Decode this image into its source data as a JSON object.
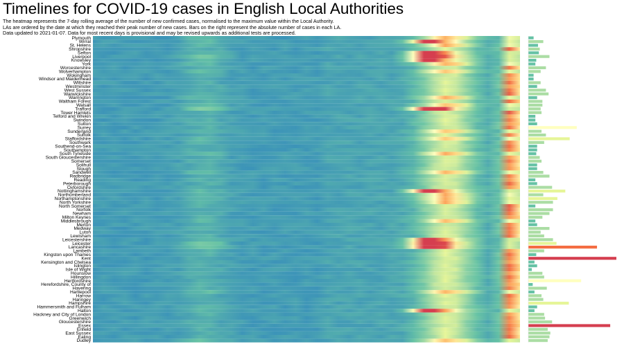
{
  "page": {
    "title": "Timelines for COVID-19 cases in English Local Authorities",
    "description_lines": [
      "The heatmap represents the 7-day rolling average of the number of new confirmed cases, normalised to the maximum value within the Local Authority.",
      "LAs are ordered by the date at which they reached their peak number of new cases. Bars on the right represent the absolute number of cases in each LA.",
      "Data updated to 2021-01-07. Data for most recent days is provisional and may be revised upwards as additional tests are processed."
    ]
  },
  "colors": {
    "low": "#3288bd",
    "mid": "#ffffbf",
    "high": "#d53e4f"
  },
  "chart_data": {
    "type": "heatmap",
    "title": "Timelines for COVID-19 cases in English Local Authorities",
    "value_scale": [
      0,
      1
    ],
    "legend": "none",
    "rows": [
      {
        "name": "Plymouth",
        "pattern": 2,
        "bar": 0.06
      },
      {
        "name": "Wirral",
        "pattern": 3,
        "bar": 0.17
      },
      {
        "name": "St. Helens",
        "pattern": 2,
        "bar": 0.11
      },
      {
        "name": "Shropshire",
        "pattern": 1,
        "bar": 0.13
      },
      {
        "name": "Sefton",
        "pattern": 3,
        "bar": 0.12
      },
      {
        "name": "Liverpool",
        "pattern": 4,
        "bar": 0.24
      },
      {
        "name": "Knowsley",
        "pattern": 3,
        "bar": 0.09
      },
      {
        "name": "York",
        "pattern": 2,
        "bar": 0.08
      },
      {
        "name": "Worcestershire",
        "pattern": 1,
        "bar": 0.2
      },
      {
        "name": "Wolverhampton",
        "pattern": 2,
        "bar": 0.14
      },
      {
        "name": "Wokingham",
        "pattern": 1,
        "bar": 0.06
      },
      {
        "name": "Windsor and Maidenhead",
        "pattern": 1,
        "bar": 0.06
      },
      {
        "name": "Wiltshire",
        "pattern": 1,
        "bar": 0.14
      },
      {
        "name": "Westminster",
        "pattern": 1,
        "bar": 0.1
      },
      {
        "name": "West Sussex",
        "pattern": 1,
        "bar": 0.2
      },
      {
        "name": "Warwickshire",
        "pattern": 1,
        "bar": 0.23
      },
      {
        "name": "Warrington",
        "pattern": 2,
        "bar": 0.1
      },
      {
        "name": "Waltham Forest",
        "pattern": 1,
        "bar": 0.16
      },
      {
        "name": "Walsall",
        "pattern": 2,
        "bar": 0.16
      },
      {
        "name": "Trafford",
        "pattern": 4,
        "bar": 0.14
      },
      {
        "name": "Tower Hamlets",
        "pattern": 1,
        "bar": 0.15
      },
      {
        "name": "Telford and Wrekin",
        "pattern": 1,
        "bar": 0.08
      },
      {
        "name": "Swindon",
        "pattern": 1,
        "bar": 0.08
      },
      {
        "name": "Sutton",
        "pattern": 1,
        "bar": 0.1
      },
      {
        "name": "Surrey",
        "pattern": 1,
        "bar": 0.55
      },
      {
        "name": "Sunderland",
        "pattern": 2,
        "bar": 0.15
      },
      {
        "name": "Suffolk",
        "pattern": 1,
        "bar": 0.2
      },
      {
        "name": "Staffordshire",
        "pattern": 2,
        "bar": 0.47
      },
      {
        "name": "Southwark",
        "pattern": 1,
        "bar": 0.18
      },
      {
        "name": "Southend-on-Sea",
        "pattern": 1,
        "bar": 0.1
      },
      {
        "name": "Southampton",
        "pattern": 1,
        "bar": 0.1
      },
      {
        "name": "South Tyneside",
        "pattern": 2,
        "bar": 0.09
      },
      {
        "name": "South Gloucestershire",
        "pattern": 1,
        "bar": 0.13
      },
      {
        "name": "Somerset",
        "pattern": 1,
        "bar": 0.15
      },
      {
        "name": "Solihull",
        "pattern": 1,
        "bar": 0.1
      },
      {
        "name": "Slough",
        "pattern": 1,
        "bar": 0.1
      },
      {
        "name": "Sandwell",
        "pattern": 2,
        "bar": 0.17
      },
      {
        "name": "Redbridge",
        "pattern": 1,
        "bar": 0.24
      },
      {
        "name": "Reading",
        "pattern": 1,
        "bar": 0.08
      },
      {
        "name": "Peterborough",
        "pattern": 1,
        "bar": 0.1
      },
      {
        "name": "Oxfordshire",
        "pattern": 1,
        "bar": 0.27
      },
      {
        "name": "Nottinghamshire",
        "pattern": 3,
        "bar": 0.42
      },
      {
        "name": "Northumberland",
        "pattern": 2,
        "bar": 0.17
      },
      {
        "name": "Northamptonshire",
        "pattern": 2,
        "bar": 0.33
      },
      {
        "name": "North Yorkshire",
        "pattern": 2,
        "bar": 0.28
      },
      {
        "name": "North Somerset",
        "pattern": 1,
        "bar": 0.08
      },
      {
        "name": "Norfolk",
        "pattern": 1,
        "bar": 0.28
      },
      {
        "name": "Newham",
        "pattern": 1,
        "bar": 0.24
      },
      {
        "name": "Milton Keynes",
        "pattern": 1,
        "bar": 0.16
      },
      {
        "name": "Middlesbrough",
        "pattern": 2,
        "bar": 0.08
      },
      {
        "name": "Merton",
        "pattern": 1,
        "bar": 0.1
      },
      {
        "name": "Medway",
        "pattern": 1,
        "bar": 0.24
      },
      {
        "name": "Luton",
        "pattern": 1,
        "bar": 0.14
      },
      {
        "name": "Lewisham",
        "pattern": 1,
        "bar": 0.18
      },
      {
        "name": "Leicestershire",
        "pattern": 3,
        "bar": 0.28
      },
      {
        "name": "Leicester",
        "pattern": 4,
        "bar": 0.32
      },
      {
        "name": "Lancashire",
        "pattern": 4,
        "bar": 0.78
      },
      {
        "name": "Lambeth",
        "pattern": 1,
        "bar": 0.18
      },
      {
        "name": "Kingston upon Thames",
        "pattern": 1,
        "bar": 0.09
      },
      {
        "name": "Kent",
        "pattern": 1,
        "bar": 1.0
      },
      {
        "name": "Kensington and Chelsea",
        "pattern": 1,
        "bar": 0.07
      },
      {
        "name": "Islington",
        "pattern": 1,
        "bar": 0.1
      },
      {
        "name": "Isle of Wight",
        "pattern": 1,
        "bar": 0.04
      },
      {
        "name": "Hounslow",
        "pattern": 1,
        "bar": 0.16
      },
      {
        "name": "Hillingdon",
        "pattern": 1,
        "bar": 0.18
      },
      {
        "name": "Hertfordshire",
        "pattern": 1,
        "bar": 0.6
      },
      {
        "name": "Herefordshire, County of",
        "pattern": 1,
        "bar": 0.05
      },
      {
        "name": "Havering",
        "pattern": 1,
        "bar": 0.21
      },
      {
        "name": "Hartlepool",
        "pattern": 2,
        "bar": 0.07
      },
      {
        "name": "Harrow",
        "pattern": 1,
        "bar": 0.15
      },
      {
        "name": "Haringey",
        "pattern": 1,
        "bar": 0.17
      },
      {
        "name": "Hampshire",
        "pattern": 1,
        "bar": 0.46
      },
      {
        "name": "Hammersmith and Fulham",
        "pattern": 1,
        "bar": 0.1
      },
      {
        "name": "Halton",
        "pattern": 3,
        "bar": 0.07
      },
      {
        "name": "Hackney and City of London",
        "pattern": 1,
        "bar": 0.18
      },
      {
        "name": "Greenwich",
        "pattern": 1,
        "bar": 0.19
      },
      {
        "name": "Gloucestershire",
        "pattern": 1,
        "bar": 0.27
      },
      {
        "name": "Essex",
        "pattern": 1,
        "bar": 0.93
      },
      {
        "name": "Enfield",
        "pattern": 1,
        "bar": 0.22
      },
      {
        "name": "East Sussex",
        "pattern": 1,
        "bar": 0.25
      },
      {
        "name": "Ealing",
        "pattern": 1,
        "bar": 0.24
      },
      {
        "name": "Dudley",
        "pattern": 2,
        "bar": 0.22
      }
    ]
  }
}
